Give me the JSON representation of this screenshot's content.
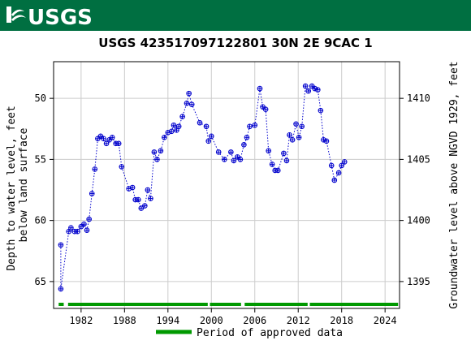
{
  "banner": {
    "logo_text": "USGS",
    "color": "#006F41"
  },
  "chart_data": {
    "type": "scatter",
    "title": "USGS 423517097122801  30N  2E 9CAC 1",
    "ylabel_left": "Depth to water level, feet below land surface",
    "ylabel_right": "Groundwater level above NGVD 1929, feet",
    "x_range": [
      1978.2,
      2026.0
    ],
    "ylim_left": [
      67.2,
      47.0
    ],
    "ylim_right": [
      1392.8,
      1413.0
    ],
    "y_ticks_left": [
      50,
      55,
      60,
      65
    ],
    "y_ticks_right": [
      1395,
      1400,
      1405,
      1410
    ],
    "x_ticks": [
      1982,
      1988,
      1994,
      2000,
      2006,
      2012,
      2018,
      2024
    ],
    "grid": true,
    "series_color": "#0000cc",
    "points": [
      [
        1979.2,
        62.0
      ],
      [
        1979.2,
        65.6
      ],
      [
        1980.3,
        60.9
      ],
      [
        1980.6,
        60.6
      ],
      [
        1981.1,
        60.9
      ],
      [
        1981.5,
        60.9
      ],
      [
        1982.0,
        60.5
      ],
      [
        1982.4,
        60.3
      ],
      [
        1982.8,
        60.8
      ],
      [
        1983.1,
        59.9
      ],
      [
        1983.5,
        57.8
      ],
      [
        1983.9,
        55.8
      ],
      [
        1984.3,
        53.3
      ],
      [
        1984.7,
        53.1
      ],
      [
        1985.1,
        53.3
      ],
      [
        1985.5,
        53.7
      ],
      [
        1985.9,
        53.4
      ],
      [
        1986.3,
        53.2
      ],
      [
        1986.8,
        53.7
      ],
      [
        1987.2,
        53.7
      ],
      [
        1987.6,
        55.6
      ],
      [
        1988.6,
        57.4
      ],
      [
        1989.1,
        57.3
      ],
      [
        1989.5,
        58.3
      ],
      [
        1989.9,
        58.3
      ],
      [
        1990.3,
        59.0
      ],
      [
        1990.8,
        58.8
      ],
      [
        1991.2,
        57.5
      ],
      [
        1991.6,
        58.2
      ],
      [
        1992.1,
        54.4
      ],
      [
        1992.5,
        55.0
      ],
      [
        1993.0,
        54.3
      ],
      [
        1993.5,
        53.2
      ],
      [
        1994.0,
        52.8
      ],
      [
        1994.5,
        52.7
      ],
      [
        1994.8,
        52.2
      ],
      [
        1995.2,
        52.6
      ],
      [
        1995.5,
        52.3
      ],
      [
        1996.0,
        51.5
      ],
      [
        1996.6,
        50.4
      ],
      [
        1996.9,
        49.6
      ],
      [
        1997.3,
        50.5
      ],
      [
        1998.4,
        52.0
      ],
      [
        1999.3,
        52.3
      ],
      [
        1999.6,
        53.5
      ],
      [
        2000.0,
        53.1
      ],
      [
        2001.0,
        54.4
      ],
      [
        2001.8,
        55.0
      ],
      [
        2002.7,
        54.4
      ],
      [
        2003.1,
        55.1
      ],
      [
        2003.6,
        54.8
      ],
      [
        2004.0,
        55.0
      ],
      [
        2004.5,
        53.8
      ],
      [
        2004.9,
        53.2
      ],
      [
        2005.3,
        52.3
      ],
      [
        2006.0,
        52.2
      ],
      [
        2006.7,
        49.2
      ],
      [
        2007.1,
        50.7
      ],
      [
        2007.5,
        50.9
      ],
      [
        2007.9,
        54.3
      ],
      [
        2008.4,
        55.4
      ],
      [
        2008.8,
        55.9
      ],
      [
        2009.2,
        55.9
      ],
      [
        2010.0,
        54.5
      ],
      [
        2010.4,
        55.1
      ],
      [
        2010.8,
        53.0
      ],
      [
        2011.2,
        53.4
      ],
      [
        2011.7,
        52.1
      ],
      [
        2012.1,
        53.2
      ],
      [
        2012.5,
        52.3
      ],
      [
        2013.0,
        49.0
      ],
      [
        2013.4,
        49.4
      ],
      [
        2013.9,
        49.0
      ],
      [
        2014.3,
        49.2
      ],
      [
        2014.7,
        49.3
      ],
      [
        2015.1,
        51.0
      ],
      [
        2015.5,
        53.4
      ],
      [
        2015.9,
        53.5
      ],
      [
        2016.6,
        55.5
      ],
      [
        2017.0,
        56.7
      ],
      [
        2017.6,
        56.1
      ],
      [
        2018.0,
        55.5
      ],
      [
        2018.4,
        55.2
      ]
    ],
    "approved_periods": [
      [
        1978.9,
        1979.6
      ],
      [
        1980.2,
        1999.5
      ],
      [
        1999.8,
        2004.1
      ],
      [
        2004.6,
        2013.3
      ],
      [
        2013.6,
        2025.8
      ]
    ],
    "approved_color": "#009900",
    "legend": {
      "label": "Period of approved data",
      "placement": "bottom"
    }
  }
}
